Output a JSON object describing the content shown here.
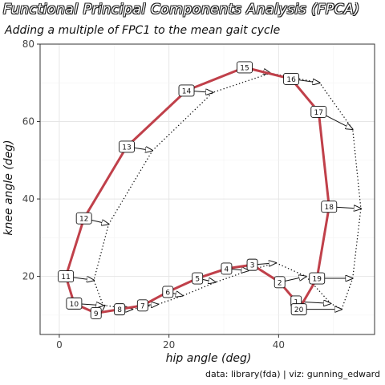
{
  "title": "Functional Principal Components Analysis (FPCA)",
  "subtitle": "Adding a multiple of FPC1 to the mean gait cycle",
  "caption": "data: library(fda) | viz: gunning_edward",
  "colors": {
    "mean_line": "#c0404a",
    "arrow": "#111111",
    "grid_major": "#e6e6e6",
    "grid_minor": "#f3f3f3",
    "panel_border": "#333333"
  },
  "chart_data": {
    "type": "line",
    "xlabel": "hip angle (deg)",
    "ylabel": "knee angle (deg)",
    "xlim": [
      -3.5,
      57.5
    ],
    "ylim": [
      5,
      80
    ],
    "xticks": [
      0,
      20,
      40
    ],
    "yticks": [
      20,
      40,
      60,
      80
    ],
    "grid": true,
    "series": [
      {
        "points": [
          {
            "label": "1",
            "x": 43.2,
            "y": 13.5
          },
          {
            "label": "2",
            "x": 40.2,
            "y": 18.5
          },
          {
            "label": "3",
            "x": 35.2,
            "y": 23.0
          },
          {
            "label": "4",
            "x": 30.5,
            "y": 22.0
          },
          {
            "label": "5",
            "x": 25.2,
            "y": 19.5
          },
          {
            "label": "6",
            "x": 19.8,
            "y": 16.0
          },
          {
            "label": "7",
            "x": 15.2,
            "y": 12.5
          },
          {
            "label": "8",
            "x": 11.0,
            "y": 11.5
          },
          {
            "label": "9",
            "x": 6.7,
            "y": 10.5
          },
          {
            "label": "10",
            "x": 2.7,
            "y": 13.0
          },
          {
            "label": "11",
            "x": 1.2,
            "y": 20.0
          },
          {
            "label": "12",
            "x": 4.5,
            "y": 35.0
          },
          {
            "label": "13",
            "x": 12.3,
            "y": 53.5
          },
          {
            "label": "14",
            "x": 23.2,
            "y": 68.0
          },
          {
            "label": "15",
            "x": 33.8,
            "y": 74.0
          },
          {
            "label": "16",
            "x": 42.3,
            "y": 71.0
          },
          {
            "label": "17",
            "x": 47.3,
            "y": 62.5
          },
          {
            "label": "18",
            "x": 49.2,
            "y": 38.0
          },
          {
            "label": "19",
            "x": 47.0,
            "y": 19.5
          },
          {
            "label": "20",
            "x": 43.7,
            "y": 11.5
          }
        ]
      },
      {
        "points": [
          {
            "label": "1",
            "x": 49.5,
            "y": 13.0
          },
          {
            "label": "2",
            "x": 45.0,
            "y": 20.0
          },
          {
            "label": "3",
            "x": 39.5,
            "y": 23.5
          },
          {
            "label": "4",
            "x": 34.5,
            "y": 21.5
          },
          {
            "label": "5",
            "x": 28.5,
            "y": 18.5
          },
          {
            "label": "6",
            "x": 22.5,
            "y": 15.0
          },
          {
            "label": "7",
            "x": 18.0,
            "y": 12.8
          },
          {
            "label": "8",
            "x": 13.3,
            "y": 11.5
          },
          {
            "label": "9",
            "x": 8.3,
            "y": 12.5
          },
          {
            "label": "10",
            "x": 8.0,
            "y": 12.5
          },
          {
            "label": "11",
            "x": 6.3,
            "y": 19.0
          },
          {
            "label": "12",
            "x": 9.0,
            "y": 33.5
          },
          {
            "label": "13",
            "x": 17.0,
            "y": 52.5
          },
          {
            "label": "14",
            "x": 28.0,
            "y": 67.5
          },
          {
            "label": "15",
            "x": 38.5,
            "y": 72.5
          },
          {
            "label": "16",
            "x": 47.5,
            "y": 70.0
          },
          {
            "label": "17",
            "x": 53.5,
            "y": 58.0
          },
          {
            "label": "18",
            "x": 55.0,
            "y": 37.5
          },
          {
            "label": "19",
            "x": 53.5,
            "y": 19.5
          },
          {
            "label": "20",
            "x": 51.5,
            "y": 11.5
          }
        ]
      }
    ]
  }
}
